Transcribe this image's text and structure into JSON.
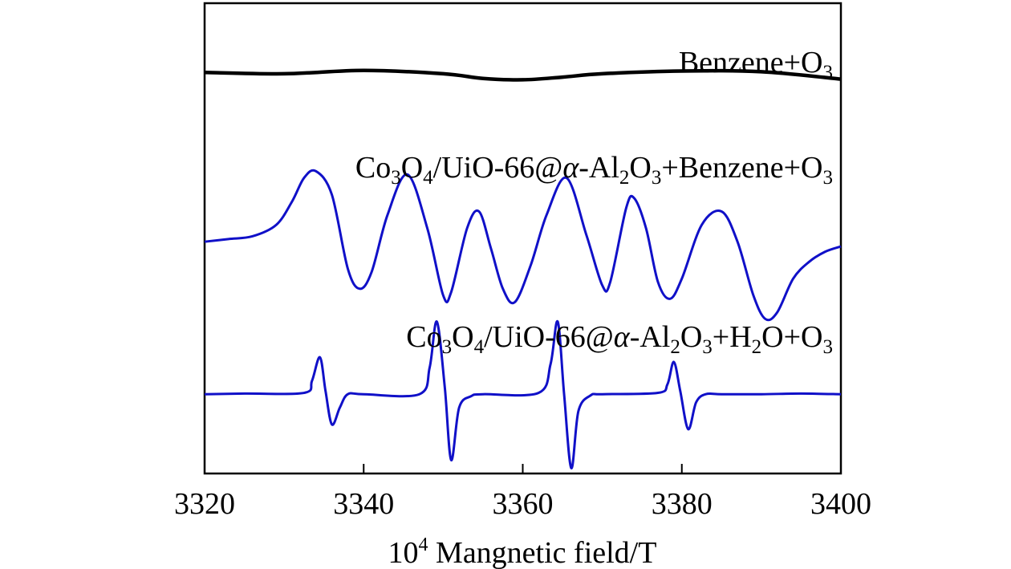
{
  "chart_data": {
    "type": "line",
    "title": "",
    "xlabel_prefix": "10",
    "xlabel_sup": "4",
    "xlabel_main": " Mangnetic field/T",
    "ylabel": "",
    "xlim": [
      3320,
      3400
    ],
    "x_ticks": [
      "3320",
      "3340",
      "3360",
      "3380",
      "3400"
    ],
    "grid": false,
    "series": [
      {
        "name": "Benzene+O3",
        "label_runs": [
          {
            "t": "Benzene+O"
          },
          {
            "t": "3",
            "sub": true
          }
        ],
        "color": "#000000",
        "offset": 5.95,
        "x": [
          3320,
          3330,
          3340,
          3350,
          3355,
          3360,
          3365,
          3370,
          3380,
          3390,
          3400
        ],
        "y": [
          0.02,
          0.0,
          0.05,
          0.0,
          -0.07,
          -0.09,
          -0.05,
          0.0,
          0.04,
          0.03,
          -0.08
        ]
      },
      {
        "name": "Co3O4/UiO-66@α-Al2O3+Benzene+O3",
        "label_runs": [
          {
            "t": "Co"
          },
          {
            "t": "3",
            "sub": true
          },
          {
            "t": "O"
          },
          {
            "t": "4",
            "sub": true
          },
          {
            "t": "/UiO-66@"
          },
          {
            "t": "α",
            "italic": true
          },
          {
            "t": "-Al"
          },
          {
            "t": "2",
            "sub": true
          },
          {
            "t": "O"
          },
          {
            "t": "3",
            "sub": true
          },
          {
            "t": "+Benzene+O"
          },
          {
            "t": "3",
            "sub": true
          }
        ],
        "color": "#1010c8",
        "offset": 3.45,
        "x": [
          3320,
          3323,
          3326,
          3329,
          3331,
          3332.5,
          3334,
          3336,
          3338,
          3339.5,
          3341,
          3343,
          3345.5,
          3348,
          3350,
          3351,
          3353,
          3354.5,
          3356,
          3357.5,
          3359,
          3361,
          3363,
          3365.5,
          3368,
          3370,
          3371,
          3373,
          3374,
          3375.5,
          3377,
          3378.5,
          3380,
          3382.5,
          3385,
          3387,
          3389,
          3390.5,
          3392,
          3394,
          3396,
          3398,
          3400
        ],
        "y": [
          0.0,
          0.04,
          0.08,
          0.25,
          0.6,
          0.95,
          1.05,
          0.7,
          -0.4,
          -0.7,
          -0.45,
          0.4,
          1.0,
          0.2,
          -0.8,
          -0.75,
          0.2,
          0.45,
          -0.1,
          -0.7,
          -0.9,
          -0.35,
          0.4,
          0.95,
          0.1,
          -0.65,
          -0.6,
          0.5,
          0.65,
          0.2,
          -0.6,
          -0.85,
          -0.55,
          0.25,
          0.45,
          0.0,
          -0.8,
          -1.15,
          -1.05,
          -0.55,
          -0.3,
          -0.15,
          -0.07
        ]
      },
      {
        "name": "Co3O4/UiO-66@α-Al2O3+H2O+O3",
        "label_runs": [
          {
            "t": "Co"
          },
          {
            "t": "3",
            "sub": true
          },
          {
            "t": "O"
          },
          {
            "t": "4",
            "sub": true
          },
          {
            "t": "/UiO-66@"
          },
          {
            "t": "α",
            "italic": true
          },
          {
            "t": "-Al"
          },
          {
            "t": "2",
            "sub": true
          },
          {
            "t": "O"
          },
          {
            "t": "3",
            "sub": true
          },
          {
            "t": "+H"
          },
          {
            "t": "2",
            "sub": true
          },
          {
            "t": "O+O"
          },
          {
            "t": "3",
            "sub": true
          }
        ],
        "color": "#1010c8",
        "offset": 1.18,
        "x": [
          3320,
          3325,
          3332.5,
          3333.5,
          3334.5,
          3335.2,
          3336,
          3337,
          3338,
          3340,
          3347,
          3348.3,
          3349.2,
          3350.2,
          3351,
          3352,
          3353.5,
          3355,
          3362,
          3363.5,
          3364.4,
          3365.2,
          3366.1,
          3367,
          3368.5,
          3370,
          3377,
          3378.2,
          3379,
          3379.8,
          3380.8,
          3381.8,
          3383,
          3385,
          3390,
          3395,
          3400
        ],
        "y": [
          0.0,
          0.01,
          0.02,
          0.2,
          0.55,
          0.05,
          -0.45,
          -0.2,
          0.0,
          0.0,
          0.0,
          0.4,
          1.08,
          0.1,
          -0.98,
          -0.2,
          -0.03,
          0.0,
          0.02,
          0.45,
          1.08,
          0.0,
          -1.1,
          -0.25,
          -0.02,
          0.0,
          0.02,
          0.15,
          0.48,
          0.05,
          -0.52,
          -0.12,
          0.0,
          0.0,
          0.0,
          0.01,
          0.0
        ]
      }
    ]
  }
}
